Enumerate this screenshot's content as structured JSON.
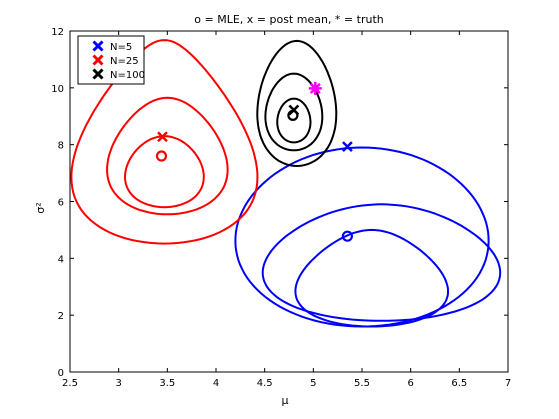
{
  "chart_data": {
    "type": "contour",
    "title": "o = MLE, x = post mean, * = truth",
    "xlabel": "μ",
    "ylabel": "σ²",
    "xlim": [
      2.5,
      7
    ],
    "ylim": [
      0,
      12
    ],
    "xticks": [
      "2.5",
      "3",
      "3.5",
      "4",
      "4.5",
      "5",
      "5.5",
      "6",
      "6.5",
      "7"
    ],
    "yticks": [
      "0",
      "2",
      "4",
      "6",
      "8",
      "10",
      "12"
    ],
    "grid": false,
    "legend_position": "top-left",
    "truth": {
      "x": 5.02,
      "y": 9.98,
      "color": "#ff00ff"
    },
    "series": [
      {
        "name": "N=5",
        "color": "#0000ff",
        "post_mean": {
          "x": 5.35,
          "y": 7.93
        },
        "mle": {
          "x": 5.35,
          "y": 4.78
        },
        "contours": [
          {
            "cx": 5.6,
            "cy": 3.3,
            "rx": 0.75,
            "ry": 1.7,
            "bottom": 2.65
          },
          {
            "cx": 5.7,
            "cy": 3.85,
            "rx": 1.2,
            "ry": 2.05,
            "bottom": 1.55
          },
          {
            "cx": 5.5,
            "cy": 4.75,
            "rx": 1.3,
            "ry": 3.15,
            "bottom": 0.35
          }
        ]
      },
      {
        "name": "N=25",
        "color": "#ff0000",
        "post_mean": {
          "x": 3.45,
          "y": 8.28
        },
        "mle": {
          "x": 3.44,
          "y": 7.6
        },
        "contours": [
          {
            "cx": 3.47,
            "cy": 7.05,
            "rx": 0.4,
            "ry": 1.25,
            "bottom": 1.3
          },
          {
            "cx": 3.5,
            "cy": 7.6,
            "rx": 0.6,
            "ry": 2.05,
            "bottom": 2.2
          },
          {
            "cx": 3.47,
            "cy": 8.1,
            "rx": 0.88,
            "ry": 3.58,
            "bottom": 3.8
          }
        ]
      },
      {
        "name": "N=100",
        "color": "#000000",
        "post_mean": {
          "x": 4.8,
          "y": 9.22
        },
        "mle": {
          "x": 4.79,
          "y": 9.03
        },
        "contours": [
          {
            "cx": 4.8,
            "cy": 8.85,
            "rx": 0.17,
            "ry": 0.77,
            "bottom": 0.62
          },
          {
            "cx": 4.8,
            "cy": 9.15,
            "rx": 0.29,
            "ry": 1.35,
            "bottom": 1.05
          },
          {
            "cx": 4.83,
            "cy": 9.45,
            "rx": 0.4,
            "ry": 2.2,
            "bottom": 1.45
          }
        ]
      }
    ]
  }
}
